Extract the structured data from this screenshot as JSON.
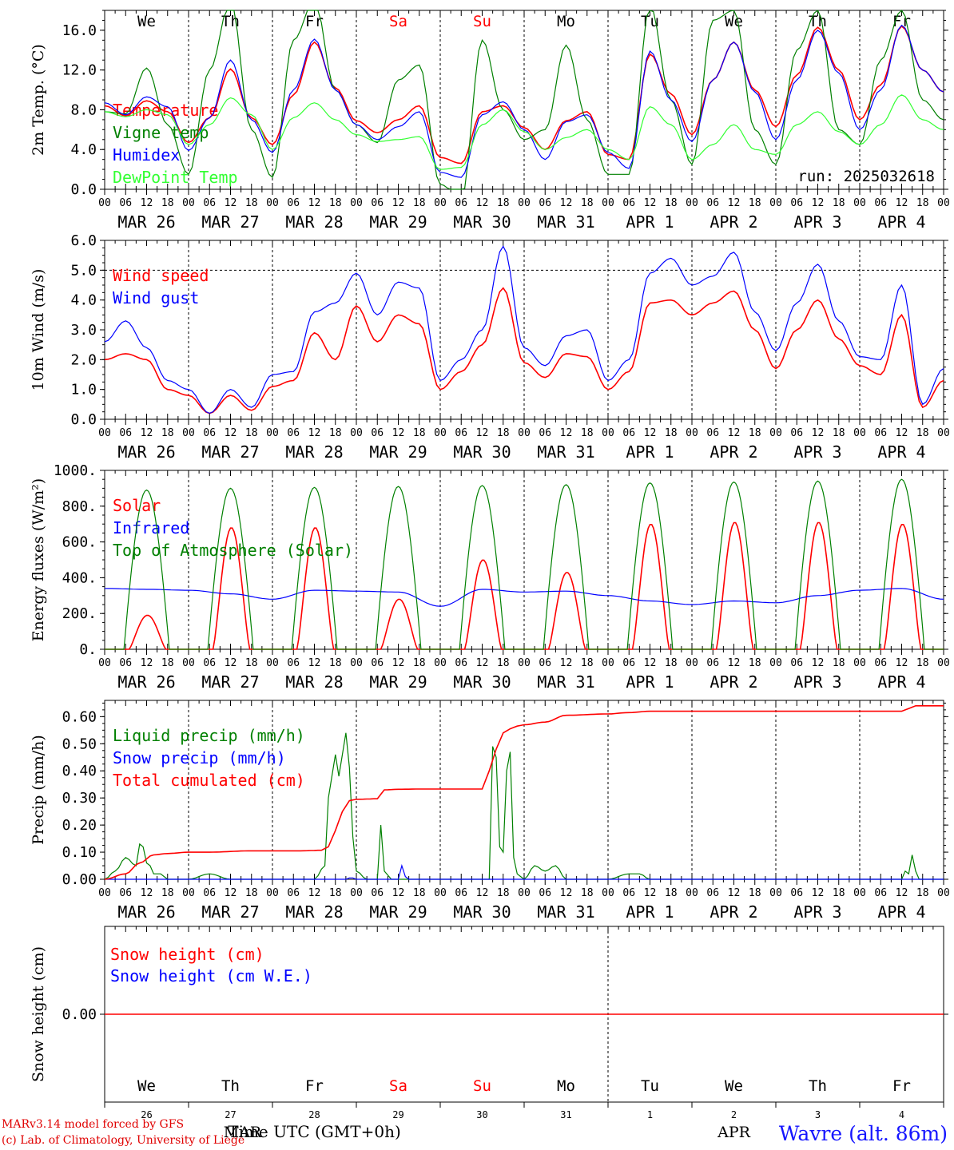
{
  "meta": {
    "run_label": "run: 2025032618",
    "xlabel": "Time UTC (GMT+0h)",
    "credit_line1": "MARv3.14 model forced by GFS",
    "credit_line2": "(c) Lab. of Climatology, University of Liege",
    "station": "Wavre (alt. 86m)",
    "bottom_month_left": "MAR",
    "bottom_month_right": "APR"
  },
  "axis": {
    "hours": [
      "00",
      "06",
      "12",
      "18"
    ],
    "last_hour": "00",
    "dates": [
      "MAR 26",
      "MAR 27",
      "MAR 28",
      "MAR 29",
      "MAR 30",
      "MAR 31",
      "APR  1",
      "APR  2",
      "APR  3",
      "APR  4"
    ],
    "weekdays": [
      {
        "label": "We",
        "color": "#000000"
      },
      {
        "label": "Th",
        "color": "#000000"
      },
      {
        "label": "Fr",
        "color": "#000000"
      },
      {
        "label": "Sa",
        "color": "#ff0000"
      },
      {
        "label": "Su",
        "color": "#ff0000"
      },
      {
        "label": "Mo",
        "color": "#000000"
      },
      {
        "label": "Tu",
        "color": "#000000"
      },
      {
        "label": "We",
        "color": "#000000"
      },
      {
        "label": "Th",
        "color": "#000000"
      },
      {
        "label": "Fr",
        "color": "#000000"
      }
    ],
    "day_numbers": [
      "26",
      "27",
      "28",
      "29",
      "30",
      "31",
      "1",
      "2",
      "3",
      "4"
    ]
  },
  "colors": {
    "red": "#ff0000",
    "dark_green": "#008000",
    "blue": "#0000ff",
    "light_green": "#33ff33"
  },
  "chart_data": [
    {
      "id": "temperature",
      "type": "line",
      "ylabel": "2m Temp. (°C)",
      "x_unit": "hours since MAR 26 00 UTC",
      "ylim": [
        0,
        18
      ],
      "yticks": [
        "0.0",
        "4.0",
        "8.0",
        "12.0",
        "16.0"
      ],
      "ytick_values": [
        0,
        4,
        8,
        12,
        16
      ],
      "show_weekdays": true,
      "show_run": true,
      "series": [
        {
          "name": "Temperature",
          "color": "red",
          "x": [
            0,
            6,
            12,
            18,
            24,
            30,
            36,
            42,
            48,
            54,
            60,
            66,
            72,
            78,
            84,
            90,
            96,
            102,
            108,
            114,
            120,
            126,
            132,
            138,
            144,
            150,
            156,
            162,
            168,
            174,
            180,
            186,
            192,
            198,
            204,
            210,
            216,
            222,
            228,
            234,
            240
          ],
          "y": [
            8.4,
            7.4,
            8.9,
            7.8,
            4.7,
            7.2,
            12.1,
            7.2,
            4.5,
            9.5,
            14.8,
            10.2,
            6.9,
            5.7,
            7.0,
            8.4,
            3.2,
            2.6,
            7.8,
            8.4,
            6.2,
            4.0,
            6.9,
            7.8,
            3.5,
            3.0,
            13.6,
            9.6,
            5.5,
            11.0,
            14.8,
            10.0,
            6.3,
            11.5,
            16.3,
            12.0,
            7.0,
            10.5,
            16.4,
            12.0,
            9.8
          ]
        },
        {
          "name": "Vigne temp",
          "color": "dark_green",
          "x": [
            0,
            6,
            12,
            18,
            24,
            30,
            36,
            42,
            48,
            54,
            60,
            66,
            72,
            78,
            84,
            90,
            96,
            102,
            108,
            114,
            120,
            126,
            132,
            138,
            144,
            150,
            156,
            162,
            168,
            174,
            180,
            186,
            192,
            198,
            204,
            210,
            216,
            222,
            228,
            234,
            240
          ],
          "y": [
            7.8,
            7.6,
            12.2,
            6.5,
            1.5,
            12.0,
            19.0,
            6.0,
            1.2,
            15.0,
            19.0,
            10.0,
            6.5,
            4.7,
            11.0,
            12.5,
            0.5,
            -1.0,
            15.0,
            8.0,
            5.0,
            6.0,
            14.5,
            7.0,
            1.5,
            1.5,
            18.5,
            9.0,
            2.5,
            17.0,
            18.0,
            6.0,
            2.5,
            14.0,
            18.0,
            6.0,
            4.5,
            13.0,
            18.0,
            9.0,
            7.0
          ]
        },
        {
          "name": "Humidex",
          "color": "blue",
          "x": [
            0,
            6,
            12,
            18,
            24,
            30,
            36,
            42,
            48,
            54,
            60,
            66,
            72,
            78,
            84,
            90,
            96,
            102,
            108,
            114,
            120,
            126,
            132,
            138,
            144,
            150,
            156,
            162,
            168,
            174,
            180,
            186,
            192,
            198,
            204,
            210,
            216,
            222,
            228,
            234,
            240
          ],
          "y": [
            8.7,
            7.5,
            9.3,
            8.3,
            3.9,
            7.2,
            13.0,
            7.0,
            3.7,
            10.0,
            15.1,
            10.0,
            6.5,
            5.0,
            6.3,
            7.8,
            1.7,
            1.2,
            7.5,
            8.8,
            6.0,
            3.0,
            6.8,
            7.5,
            3.7,
            2.1,
            13.9,
            9.0,
            4.8,
            11.0,
            14.8,
            9.8,
            5.0,
            11.0,
            16.0,
            11.7,
            6.0,
            10.0,
            16.5,
            12.0,
            9.8
          ]
        },
        {
          "name": "DewPoint Temp",
          "color": "light_green",
          "x": [
            0,
            6,
            12,
            18,
            24,
            30,
            36,
            42,
            48,
            54,
            60,
            66,
            72,
            78,
            84,
            90,
            96,
            102,
            108,
            114,
            120,
            126,
            132,
            138,
            144,
            150,
            156,
            162,
            168,
            174,
            180,
            186,
            192,
            198,
            204,
            210,
            216,
            222,
            228,
            234,
            240
          ],
          "y": [
            7.8,
            7.3,
            8.0,
            7.5,
            4.5,
            6.5,
            9.2,
            7.5,
            4.0,
            7.2,
            8.7,
            7.0,
            5.5,
            4.8,
            5.0,
            5.3,
            2.0,
            2.2,
            6.5,
            8.0,
            5.8,
            4.0,
            5.2,
            6.0,
            4.0,
            3.0,
            8.3,
            6.5,
            3.0,
            4.5,
            6.5,
            4.0,
            3.5,
            6.5,
            7.8,
            5.8,
            4.5,
            6.5,
            9.5,
            7.0,
            6.0
          ]
        }
      ]
    },
    {
      "id": "wind",
      "type": "line",
      "ylabel": "10m Wind (m/s)",
      "ylim": [
        0,
        6
      ],
      "yticks": [
        "0.0",
        "1.0",
        "2.0",
        "3.0",
        "4.0",
        "5.0",
        "6.0"
      ],
      "ytick_values": [
        0,
        1,
        2,
        3,
        4,
        5,
        6
      ],
      "reference_line": 5,
      "series": [
        {
          "name": "Wind speed",
          "color": "red",
          "x": [
            0,
            6,
            12,
            18,
            24,
            30,
            36,
            42,
            48,
            54,
            60,
            66,
            72,
            78,
            84,
            90,
            96,
            102,
            108,
            114,
            120,
            126,
            132,
            138,
            144,
            150,
            156,
            162,
            168,
            174,
            180,
            186,
            192,
            198,
            204,
            210,
            216,
            222,
            228,
            234,
            240
          ],
          "y": [
            2.0,
            2.2,
            2.0,
            1.0,
            0.8,
            0.2,
            0.8,
            0.3,
            1.1,
            1.3,
            2.9,
            2.0,
            3.8,
            2.6,
            3.5,
            3.2,
            1.0,
            1.6,
            2.5,
            4.4,
            1.9,
            1.4,
            2.2,
            2.1,
            1.0,
            1.6,
            3.9,
            4.0,
            3.5,
            3.9,
            4.3,
            3.0,
            1.7,
            3.0,
            4.0,
            2.7,
            1.8,
            1.5,
            3.5,
            0.4,
            1.3
          ]
        },
        {
          "name": "Wind gust",
          "color": "blue",
          "x": [
            0,
            6,
            12,
            18,
            24,
            30,
            36,
            42,
            48,
            54,
            60,
            66,
            72,
            78,
            84,
            90,
            96,
            102,
            108,
            114,
            120,
            126,
            132,
            138,
            144,
            150,
            156,
            162,
            168,
            174,
            180,
            186,
            192,
            198,
            204,
            210,
            216,
            222,
            228,
            234,
            240
          ],
          "y": [
            2.6,
            3.3,
            2.4,
            1.3,
            1.0,
            0.2,
            1.0,
            0.4,
            1.5,
            1.6,
            3.6,
            3.9,
            4.9,
            3.5,
            4.6,
            4.4,
            1.3,
            2.0,
            3.0,
            5.8,
            2.4,
            1.8,
            2.8,
            3.0,
            1.3,
            2.0,
            4.9,
            5.4,
            4.5,
            4.8,
            5.6,
            3.6,
            2.3,
            3.9,
            5.2,
            3.3,
            2.1,
            2.0,
            4.5,
            0.5,
            1.7
          ]
        }
      ]
    },
    {
      "id": "energy",
      "type": "line",
      "ylabel": "Energy fluxes (W/m²)",
      "ylim": [
        0,
        1000
      ],
      "yticks": [
        "0.",
        "200.",
        "400.",
        "600.",
        "800.",
        "1000."
      ],
      "ytick_values": [
        0,
        200,
        400,
        600,
        800,
        1000
      ],
      "series": [
        {
          "name": "Solar",
          "color": "red",
          "peaks": [
            190,
            680,
            680,
            280,
            500,
            430,
            700,
            710,
            710,
            700
          ]
        },
        {
          "name": "Infrared",
          "color": "blue",
          "x": [
            0,
            12,
            24,
            36,
            48,
            60,
            72,
            84,
            96,
            108,
            120,
            132,
            144,
            156,
            168,
            180,
            192,
            204,
            216,
            228,
            240
          ],
          "y": [
            340,
            335,
            330,
            310,
            280,
            330,
            325,
            320,
            240,
            335,
            320,
            325,
            300,
            270,
            250,
            270,
            260,
            300,
            330,
            340,
            280
          ]
        },
        {
          "name": "Top of Atmosphere (Solar)",
          "color": "dark_green",
          "peaks": [
            890,
            900,
            905,
            910,
            915,
            920,
            930,
            935,
            940,
            950
          ]
        }
      ]
    },
    {
      "id": "precip",
      "type": "line",
      "ylabel": "Precip (mm/h)",
      "ylim": [
        0,
        0.66
      ],
      "yticks": [
        "0.00",
        "0.10",
        "0.20",
        "0.30",
        "0.40",
        "0.50",
        "0.60"
      ],
      "ytick_values": [
        0,
        0.1,
        0.2,
        0.3,
        0.4,
        0.5,
        0.6
      ],
      "series": [
        {
          "name": "Liquid precip (mm/h)",
          "color": "dark_green",
          "x": [
            0,
            3,
            6,
            9,
            10,
            11,
            12,
            13,
            14,
            16,
            18,
            24,
            30,
            36,
            42,
            48,
            54,
            60,
            63,
            64,
            66,
            67,
            69,
            72,
            75,
            78,
            79,
            80,
            82,
            84,
            96,
            110,
            111,
            112,
            113,
            114,
            115,
            116,
            117,
            118,
            120,
            123,
            126,
            129,
            132,
            144,
            150,
            153,
            156,
            168,
            228,
            229,
            230,
            231,
            232,
            233,
            234,
            240
          ],
          "y": [
            0,
            0.03,
            0.08,
            0.05,
            0.13,
            0.12,
            0.06,
            0.05,
            0.02,
            0.02,
            0.0,
            0.0,
            0.02,
            0.0,
            0.0,
            0.0,
            0.0,
            0.0,
            0.05,
            0.3,
            0.46,
            0.38,
            0.54,
            0.03,
            0.0,
            0.0,
            0.2,
            0.03,
            0.0,
            0.0,
            0.0,
            0.0,
            0.49,
            0.45,
            0.12,
            0.1,
            0.4,
            0.47,
            0.08,
            0.02,
            0.0,
            0.05,
            0.03,
            0.05,
            0.0,
            0.0,
            0.02,
            0.02,
            0.0,
            0.0,
            0.0,
            0.03,
            0.02,
            0.09,
            0.03,
            0.0,
            0.0,
            0.0
          ]
        },
        {
          "name": "Snow precip (mm/h)",
          "color": "blue",
          "x": [
            0,
            69,
            70,
            71,
            72,
            84,
            85,
            86,
            87,
            240
          ],
          "y": [
            0,
            0,
            0.005,
            0.005,
            0,
            0,
            0.05,
            0.01,
            0,
            0
          ]
        },
        {
          "name": "Total cumulated (cm)",
          "color": "red",
          "x": [
            0,
            6,
            10,
            14,
            18,
            24,
            30,
            42,
            56,
            62,
            64,
            66,
            68,
            70,
            72,
            78,
            80,
            84,
            90,
            96,
            108,
            110,
            112,
            114,
            116,
            118,
            120,
            126,
            132,
            144,
            150,
            156,
            168,
            180,
            204,
            228,
            230,
            232,
            240
          ],
          "y": [
            0,
            0.02,
            0.06,
            0.09,
            0.095,
            0.1,
            0.1,
            0.105,
            0.105,
            0.107,
            0.12,
            0.18,
            0.25,
            0.29,
            0.295,
            0.297,
            0.33,
            0.332,
            0.333,
            0.333,
            0.333,
            0.4,
            0.48,
            0.54,
            0.555,
            0.565,
            0.57,
            0.58,
            0.605,
            0.61,
            0.615,
            0.62,
            0.62,
            0.62,
            0.62,
            0.62,
            0.63,
            0.64,
            0.64
          ]
        }
      ]
    },
    {
      "id": "snow",
      "type": "line",
      "ylabel": "Snow height (cm)",
      "ylim": [
        -1,
        1
      ],
      "yticks": [
        "0.00"
      ],
      "ytick_values": [
        0
      ],
      "series": [
        {
          "name": "Snow height (cm)",
          "color": "red",
          "x": [
            0,
            240
          ],
          "y": [
            0,
            0
          ]
        },
        {
          "name": "Snow height (cm W.E.)",
          "color": "blue",
          "x": [],
          "y": []
        }
      ]
    }
  ]
}
